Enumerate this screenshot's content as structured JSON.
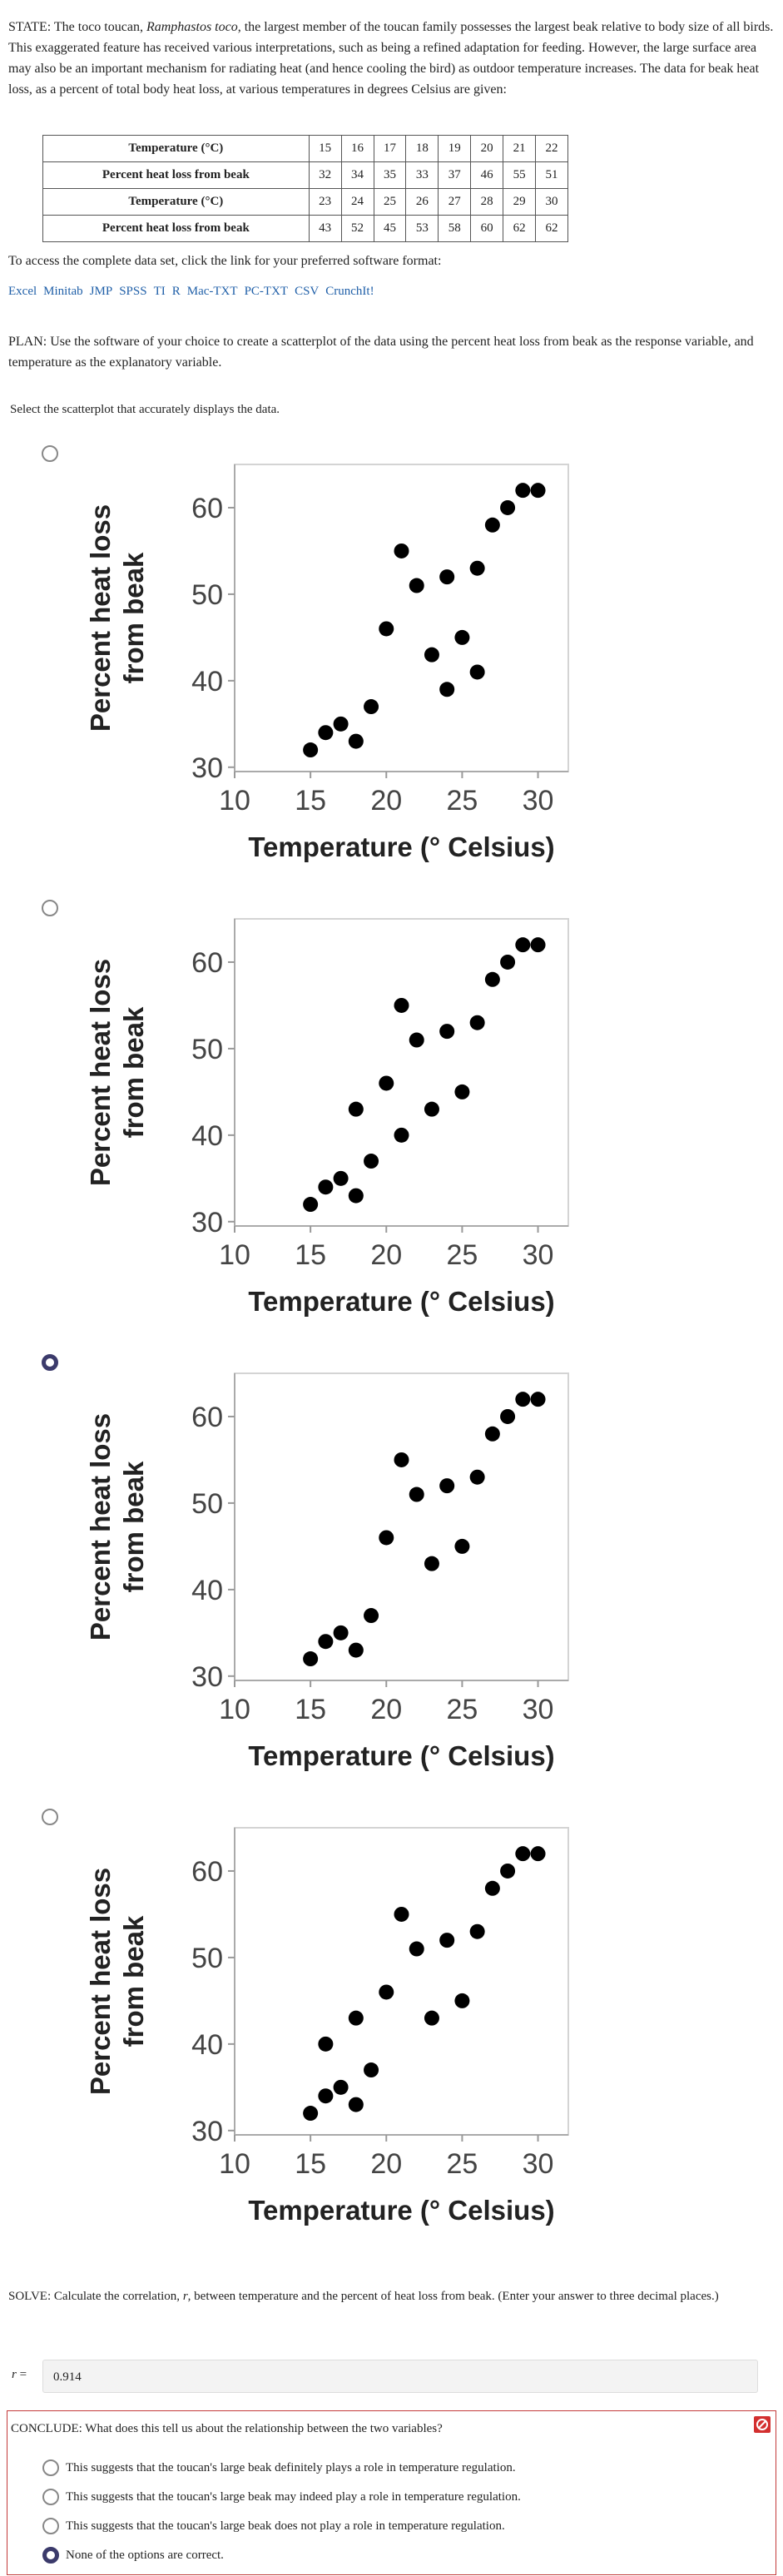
{
  "header": {
    "state_prefix": "STATE: The toco toucan, ",
    "state_italic": "Ramphastos toco",
    "state_suffix": ", the largest member of the toucan family possesses the largest beak relative to body size of all birds. This exaggerated feature has received various interpretations, such as being a refined adaptation for feeding. However, the large surface area may also be an important mechanism for radiating heat (and hence cooling the bird) as outdoor temperature increases. The data for beak heat loss, as a percent of total body heat loss, at various temperatures in degrees Celsius are given:"
  },
  "table": {
    "rows": [
      [
        "Temperature (°C)",
        15,
        16,
        17,
        18,
        19,
        20,
        21,
        22
      ],
      [
        "Percent heat loss from beak",
        32,
        34,
        35,
        33,
        37,
        46,
        55,
        51
      ],
      [
        "Temperature (°C)",
        23,
        24,
        25,
        26,
        27,
        28,
        29,
        30
      ],
      [
        "Percent heat loss from beak",
        43,
        52,
        45,
        53,
        58,
        60,
        62,
        62
      ]
    ]
  },
  "access_text": "To access the complete data set, click the link for your preferred software format:",
  "links": [
    "Excel",
    "Minitab",
    "JMP",
    "SPSS",
    "TI",
    "R",
    "Mac-TXT",
    "PC-TXT",
    "CSV",
    "CrunchIt!"
  ],
  "plan": "PLAN: Use the software of your choice to create a scatterplot of the data using the percent heat loss from beak as the response variable, and temperature as the explanatory variable.",
  "question": "Select the scatterplot that accurately displays the data.",
  "selected_option": 2,
  "chart_data": [
    {
      "type": "scatter",
      "xlabel": "Temperature (° Celsius)",
      "ylabel": [
        "Percent heat loss",
        "from beak"
      ],
      "x": [
        15,
        16,
        17,
        18,
        19,
        20,
        21,
        22,
        23,
        24,
        24,
        25,
        26,
        26,
        27,
        28,
        29,
        30
      ],
      "y": [
        32,
        34,
        35,
        33,
        37,
        46,
        55,
        51,
        43,
        52,
        39,
        45,
        53,
        41,
        58,
        60,
        62,
        62
      ],
      "color": "#000000",
      "xlim": [
        10,
        32
      ],
      "ylim": [
        29.5,
        65
      ],
      "xticks": [
        10,
        15,
        20,
        25,
        30
      ],
      "yticks": [
        30,
        40,
        50,
        60
      ]
    },
    {
      "type": "scatter",
      "xlabel": "Temperature (° Celsius)",
      "ylabel": [
        "Percent heat loss",
        "from beak"
      ],
      "x": [
        15,
        16,
        17,
        18,
        18,
        19,
        20,
        21,
        21,
        22,
        23,
        24,
        25,
        26,
        27,
        28,
        29,
        30
      ],
      "y": [
        32,
        34,
        35,
        33,
        43,
        37,
        46,
        40,
        55,
        51,
        43,
        52,
        45,
        53,
        58,
        60,
        62,
        62
      ],
      "color": "#000000",
      "xlim": [
        10,
        32
      ],
      "ylim": [
        29.5,
        65
      ],
      "xticks": [
        10,
        15,
        20,
        25,
        30
      ],
      "yticks": [
        30,
        40,
        50,
        60
      ]
    },
    {
      "type": "scatter",
      "xlabel": "Temperature (° Celsius)",
      "ylabel": [
        "Percent heat loss",
        "from beak"
      ],
      "x": [
        15,
        16,
        17,
        18,
        19,
        20,
        21,
        22,
        23,
        24,
        25,
        26,
        27,
        28,
        29,
        30
      ],
      "y": [
        32,
        34,
        35,
        33,
        37,
        46,
        55,
        51,
        43,
        52,
        45,
        53,
        58,
        60,
        62,
        62
      ],
      "color": "#000000",
      "xlim": [
        10,
        32
      ],
      "ylim": [
        29.5,
        65
      ],
      "xticks": [
        10,
        15,
        20,
        25,
        30
      ],
      "yticks": [
        30,
        40,
        50,
        60
      ]
    },
    {
      "type": "scatter",
      "xlabel": "Temperature (° Celsius)",
      "ylabel": [
        "Percent heat loss",
        "from beak"
      ],
      "x": [
        15,
        16,
        16,
        17,
        18,
        18,
        19,
        20,
        21,
        22,
        23,
        24,
        25,
        26,
        27,
        28,
        29,
        30
      ],
      "y": [
        32,
        34,
        40,
        35,
        33,
        43,
        37,
        46,
        55,
        51,
        43,
        52,
        45,
        53,
        58,
        60,
        62,
        62
      ],
      "color": "#000000",
      "xlim": [
        10,
        32
      ],
      "ylim": [
        29.5,
        65
      ],
      "xticks": [
        10,
        15,
        20,
        25,
        30
      ],
      "yticks": [
        30,
        40,
        50,
        60
      ]
    }
  ],
  "solve": {
    "prefix": "SOLVE: Calculate the correlation, ",
    "italic": "r",
    "suffix": ", between temperature and the percent of heat loss from beak. (Enter your answer to three decimal places.)"
  },
  "answer": {
    "var": "r",
    "eq": "=",
    "value": "0.914"
  },
  "conclude": {
    "prompt": "CONCLUDE: What does this tell us about the relationship between the two variables?",
    "options": [
      "This suggests that the toucan's large beak definitely plays a role in temperature regulation.",
      "This suggests that the toucan's large beak may indeed play a role in temperature regulation.",
      "This suggests that the toucan's large beak does not play a role in temperature regulation.",
      "None of the options are correct."
    ],
    "selected": 3
  }
}
